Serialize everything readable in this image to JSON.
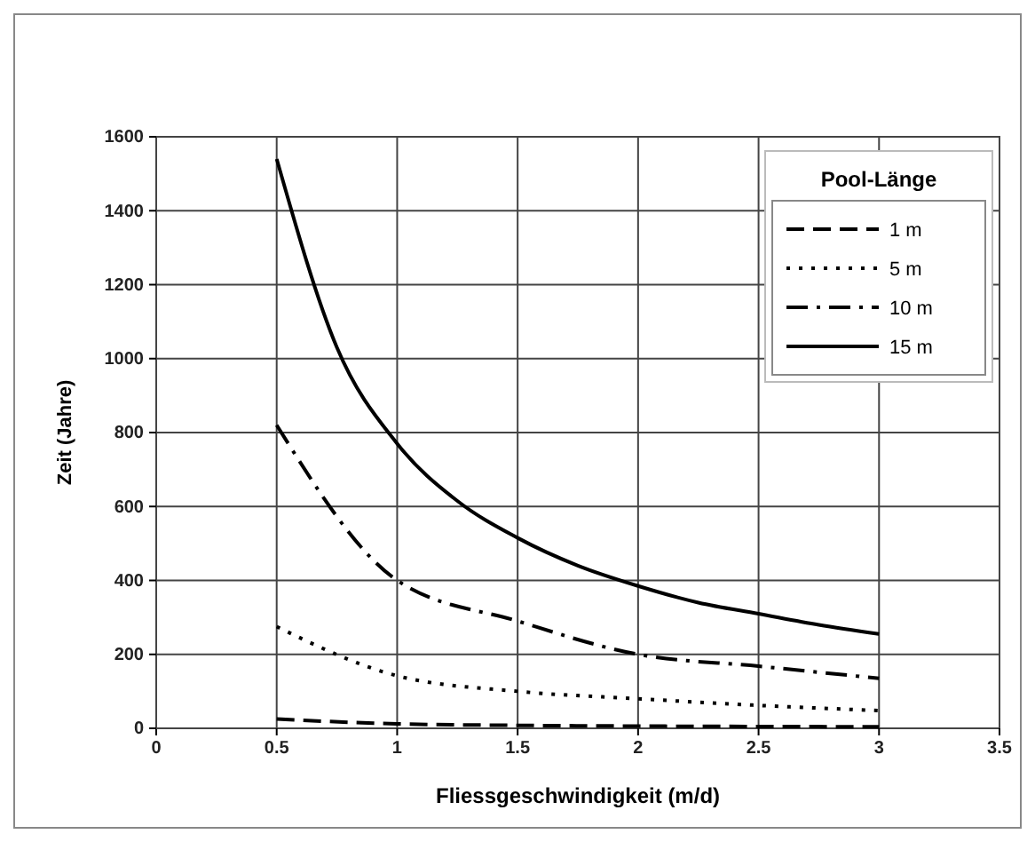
{
  "chart_data": {
    "type": "line",
    "xlabel": "Fliessgeschwindigkeit (m/d)",
    "ylabel": "Zeit (Jahre)",
    "legend_title": "Pool-Länge",
    "x": [
      0.5,
      1,
      1.5,
      2,
      2.5,
      3
    ],
    "series": [
      {
        "name": "1 m",
        "color": "#000000",
        "line_style": "dashed",
        "values": [
          25,
          12,
          8,
          6,
          5,
          4
        ]
      },
      {
        "name": "5 m",
        "color": "#000000",
        "line_style": "dotted",
        "values": [
          275,
          142,
          100,
          80,
          62,
          48
        ]
      },
      {
        "name": "10 m",
        "color": "#000000",
        "line_style": "dashdot",
        "values": [
          820,
          400,
          290,
          200,
          168,
          135
        ]
      },
      {
        "name": "15 m",
        "color": "#000000",
        "line_style": "solid",
        "x": [
          0.5,
          0.75,
          1,
          1.25,
          1.5,
          1.75,
          2,
          2.25,
          2.5,
          2.75,
          3
        ],
        "values": [
          1540,
          1030,
          770,
          615,
          515,
          440,
          385,
          340,
          310,
          280,
          255
        ]
      }
    ],
    "xlim": [
      0,
      3.5
    ],
    "xticks": [
      0,
      {
        "value": 0.5,
        "label": "0.5"
      },
      1,
      {
        "value": 1.5,
        "label": "1.5"
      },
      2,
      {
        "value": 2.5,
        "label": "2.5"
      },
      3,
      {
        "value": 3.5,
        "label": "3.5"
      }
    ],
    "ylim": [
      0,
      1600
    ],
    "yticks": [
      0,
      200,
      400,
      600,
      800,
      1000,
      1200,
      1400,
      1600
    ],
    "grid": true,
    "legend": "top right",
    "marker": "none"
  }
}
